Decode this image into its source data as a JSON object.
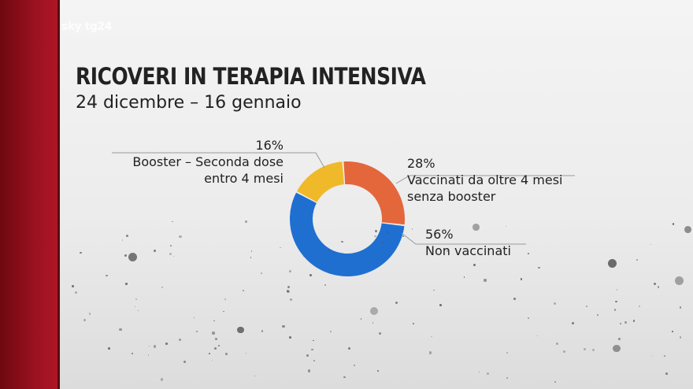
{
  "header": {
    "logo": "sky tg24",
    "title": "RICOVERI IN TERAPIA INTENSIVA",
    "subtitle": "24 dicembre – 16 gennaio"
  },
  "colors": {
    "accent_red": "#9c1220",
    "booster": "#f0b929",
    "vaccinati_senza_booster": "#e4663b",
    "non_vaccinati": "#1f6fd1"
  },
  "chart_data": {
    "type": "pie",
    "title": "RICOVERI IN TERAPIA INTENSIVA",
    "subtitle": "24 dicembre – 16 gennaio",
    "donut": true,
    "series": [
      {
        "name": "Booster – Seconda dose entro 4 mesi",
        "value": 16,
        "label": "16%",
        "text_lines": [
          "Booster – Seconda dose",
          "entro 4 mesi"
        ],
        "color": "#f0b929"
      },
      {
        "name": "Vaccinati da oltre 4 mesi senza booster",
        "value": 28,
        "label": "28%",
        "text_lines": [
          "Vaccinati da oltre 4 mesi",
          "senza booster"
        ],
        "color": "#e4663b"
      },
      {
        "name": "Non vaccinati",
        "value": 56,
        "label": "56%",
        "text_lines": [
          "Non vaccinati"
        ],
        "color": "#1f6fd1"
      }
    ]
  }
}
